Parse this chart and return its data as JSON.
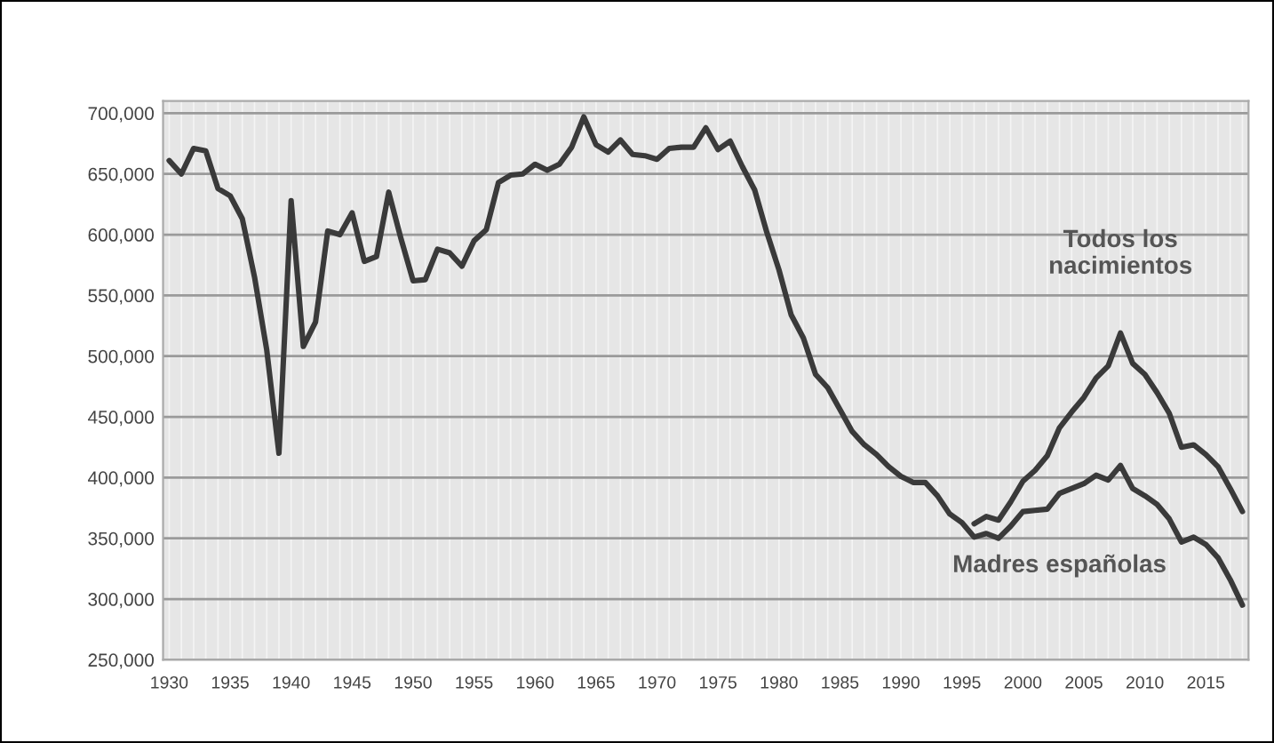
{
  "chart_data": {
    "type": "line",
    "x": [
      1930,
      1931,
      1932,
      1933,
      1934,
      1935,
      1936,
      1937,
      1938,
      1939,
      1940,
      1941,
      1942,
      1943,
      1944,
      1945,
      1946,
      1947,
      1948,
      1949,
      1950,
      1951,
      1952,
      1953,
      1954,
      1955,
      1956,
      1957,
      1958,
      1959,
      1960,
      1961,
      1962,
      1963,
      1964,
      1965,
      1966,
      1967,
      1968,
      1969,
      1970,
      1971,
      1972,
      1973,
      1974,
      1975,
      1976,
      1977,
      1978,
      1979,
      1980,
      1981,
      1982,
      1983,
      1984,
      1985,
      1986,
      1987,
      1988,
      1989,
      1990,
      1991,
      1992,
      1993,
      1994,
      1995,
      1996,
      1997,
      1998,
      1999,
      2000,
      2001,
      2002,
      2003,
      2004,
      2005,
      2006,
      2007,
      2008,
      2009,
      2010,
      2011,
      2012,
      2013,
      2014,
      2015,
      2016,
      2017,
      2018
    ],
    "series": [
      {
        "color": "#3a3a3a",
        "values": [
          661000,
          650000,
          671000,
          669000,
          638000,
          632000,
          613000,
          565000,
          505000,
          420000,
          628000,
          508000,
          528000,
          603000,
          600000,
          618000,
          578000,
          582000,
          635000,
          597000,
          562000,
          563000,
          588000,
          585000,
          574000,
          595000,
          604000,
          643000,
          649000,
          650000,
          658000,
          653000,
          658000,
          672000,
          697000,
          674000,
          668000,
          678000,
          666000,
          665000,
          662000,
          671000,
          672000,
          672000,
          688000,
          670000,
          677000,
          656000,
          637000,
          602000,
          571000,
          534000,
          515000,
          485000,
          474000,
          456000,
          438000,
          427000,
          419000,
          409000,
          401000,
          396000,
          396000,
          385000,
          370000,
          363000,
          351000,
          354000,
          350000,
          360000,
          372000,
          373000,
          374000,
          387000,
          391000,
          395000,
          402000,
          398000,
          410000,
          391000,
          385000,
          378000,
          366000,
          347000,
          351000,
          345000,
          334000,
          316000,
          295000
        ]
      },
      {
        "color": "#3a3a3a",
        "x": [
          1996,
          1997,
          1998,
          1999,
          2000,
          2001,
          2002,
          2003,
          2004,
          2005,
          2006,
          2007,
          2008,
          2009,
          2010,
          2011,
          2012,
          2013,
          2014,
          2015,
          2016,
          2017,
          2018
        ],
        "values": [
          362000,
          368000,
          365000,
          380000,
          397000,
          406000,
          418000,
          441000,
          454000,
          466000,
          482000,
          492000,
          519000,
          494000,
          485000,
          470000,
          453000,
          425000,
          427000,
          419000,
          409000,
          391000,
          372000
        ]
      }
    ],
    "annotations": [
      {
        "text": "Todos los\nnacimientos",
        "x": 2008,
        "y": 519000
      },
      {
        "text": "Madres españolas",
        "x": 2003,
        "y": 387000
      }
    ],
    "xlim": [
      1929.5,
      2018.5
    ],
    "xticks": [
      1930,
      {
        "value": 1931,
        "label": null
      },
      {
        "value": 1932,
        "label": null
      },
      {
        "value": 1933,
        "label": null
      },
      {
        "value": 1934,
        "label": null
      },
      1935,
      {
        "value": 1936,
        "label": null
      },
      {
        "value": 1937,
        "label": null
      },
      {
        "value": 1938,
        "label": null
      },
      {
        "value": 1939,
        "label": null
      },
      1940,
      {
        "value": 1941,
        "label": null
      },
      {
        "value": 1942,
        "label": null
      },
      {
        "value": 1943,
        "label": null
      },
      {
        "value": 1944,
        "label": null
      },
      1945,
      {
        "value": 1946,
        "label": null
      },
      {
        "value": 1947,
        "label": null
      },
      {
        "value": 1948,
        "label": null
      },
      {
        "value": 1949,
        "label": null
      },
      1950,
      {
        "value": 1951,
        "label": null
      },
      {
        "value": 1952,
        "label": null
      },
      {
        "value": 1953,
        "label": null
      },
      {
        "value": 1954,
        "label": null
      },
      1955,
      {
        "value": 1956,
        "label": null
      },
      {
        "value": 1957,
        "label": null
      },
      {
        "value": 1958,
        "label": null
      },
      {
        "value": 1959,
        "label": null
      },
      1960,
      {
        "value": 1961,
        "label": null
      },
      {
        "value": 1962,
        "label": null
      },
      {
        "value": 1963,
        "label": null
      },
      {
        "value": 1964,
        "label": null
      },
      1965,
      {
        "value": 1966,
        "label": null
      },
      {
        "value": 1967,
        "label": null
      },
      {
        "value": 1968,
        "label": null
      },
      {
        "value": 1969,
        "label": null
      },
      1970,
      {
        "value": 1971,
        "label": null
      },
      {
        "value": 1972,
        "label": null
      },
      {
        "value": 1973,
        "label": null
      },
      {
        "value": 1974,
        "label": null
      },
      1975,
      {
        "value": 1976,
        "label": null
      },
      {
        "value": 1977,
        "label": null
      },
      {
        "value": 1978,
        "label": null
      },
      {
        "value": 1979,
        "label": null
      },
      1980,
      {
        "value": 1981,
        "label": null
      },
      {
        "value": 1982,
        "label": null
      },
      {
        "value": 1983,
        "label": null
      },
      {
        "value": 1984,
        "label": null
      },
      1985,
      {
        "value": 1986,
        "label": null
      },
      {
        "value": 1987,
        "label": null
      },
      {
        "value": 1988,
        "label": null
      },
      {
        "value": 1989,
        "label": null
      },
      1990,
      {
        "value": 1991,
        "label": null
      },
      {
        "value": 1992,
        "label": null
      },
      {
        "value": 1993,
        "label": null
      },
      {
        "value": 1994,
        "label": null
      },
      1995,
      {
        "value": 1996,
        "label": null
      },
      {
        "value": 1997,
        "label": null
      },
      {
        "value": 1998,
        "label": null
      },
      {
        "value": 1999,
        "label": null
      },
      2000,
      {
        "value": 2001,
        "label": null
      },
      {
        "value": 2002,
        "label": null
      },
      {
        "value": 2003,
        "label": null
      },
      {
        "value": 2004,
        "label": null
      },
      2005,
      {
        "value": 2006,
        "label": null
      },
      {
        "value": 2007,
        "label": null
      },
      {
        "value": 2008,
        "label": null
      },
      {
        "value": 2009,
        "label": null
      },
      2010,
      {
        "value": 2011,
        "label": null
      },
      {
        "value": 2012,
        "label": null
      },
      {
        "value": 2013,
        "label": null
      },
      {
        "value": 2014,
        "label": null
      },
      2015,
      {
        "value": 2016,
        "label": null
      },
      {
        "value": 2017,
        "label": null
      },
      {
        "value": 2018,
        "label": null
      }
    ],
    "ylim": [
      250000,
      710000
    ],
    "yticks": [
      {
        "value": 250000,
        "label": "250,000"
      },
      {
        "value": 300000,
        "label": "300,000"
      },
      {
        "value": 350000,
        "label": "350,000"
      },
      {
        "value": 400000,
        "label": "400,000"
      },
      {
        "value": 450000,
        "label": "450,000"
      },
      {
        "value": 500000,
        "label": "500,000"
      },
      {
        "value": 550000,
        "label": "550,000"
      },
      {
        "value": 600000,
        "label": "600,000"
      },
      {
        "value": 650000,
        "label": "650,000"
      },
      {
        "value": 700000,
        "label": "700,000"
      }
    ],
    "grid": true,
    "legend": false
  }
}
